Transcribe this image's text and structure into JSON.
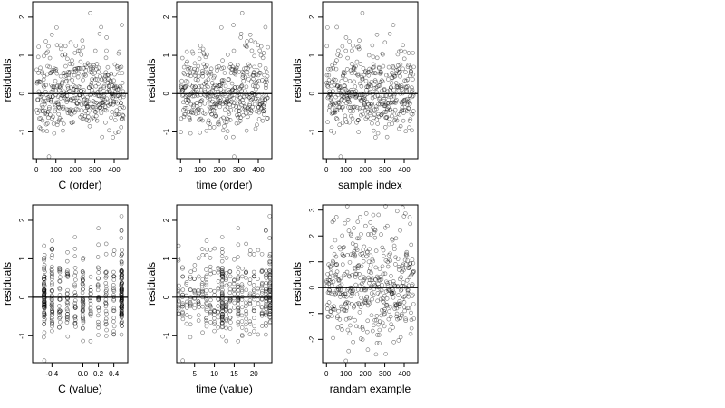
{
  "chart_data": [
    {
      "type": "scatter",
      "xlabel": "C (order)",
      "ylabel": "residuals",
      "xlim": [
        -20,
        470
      ],
      "ylim": [
        -1.7,
        2.4
      ],
      "xticks": [
        0,
        100,
        200,
        300,
        400
      ],
      "yticks": [
        -1,
        0,
        1,
        2
      ],
      "refline_y": 0,
      "x_kind": "index",
      "n": 450,
      "seed": 11,
      "ref_seed": 1,
      "y_sd": 0.5,
      "pattern": "order_C"
    },
    {
      "type": "scatter",
      "xlabel": "time (order)",
      "ylabel": "residuals",
      "xlim": [
        -20,
        470
      ],
      "ylim": [
        -1.7,
        2.4
      ],
      "xticks": [
        0,
        100,
        200,
        300,
        400
      ],
      "yticks": [
        -1,
        0,
        1,
        2
      ],
      "refline_y": 0,
      "x_kind": "index",
      "n": 450,
      "seed": 22,
      "ref_seed": 1,
      "y_sd": 0.5,
      "pattern": "order_time"
    },
    {
      "type": "scatter",
      "xlabel": "sample index",
      "ylabel": "residuals",
      "xlim": [
        -20,
        470
      ],
      "ylim": [
        -1.7,
        2.4
      ],
      "xticks": [
        0,
        100,
        200,
        300,
        400
      ],
      "yticks": [
        -1,
        0,
        1,
        2
      ],
      "refline_y": 0,
      "x_kind": "index",
      "n": 450,
      "seed": 33,
      "ref_seed": 1,
      "y_sd": 0.5,
      "pattern": "index"
    },
    {
      "type": "scatter",
      "xlabel": "C (value)",
      "ylabel": "residuals",
      "xlim": [
        -0.65,
        0.58
      ],
      "ylim": [
        -1.7,
        2.4
      ],
      "xticks": [
        -0.4,
        0.0,
        0.2,
        0.4
      ],
      "xtick_labels": [
        "-0.4",
        "0.0",
        "0.2",
        "0.4"
      ],
      "yticks": [
        -1,
        0,
        1,
        2
      ],
      "refline_y": 0,
      "x_kind": "levels",
      "x_levels": [
        -0.5,
        -0.4,
        -0.3,
        -0.2,
        -0.1,
        0.0,
        0.1,
        0.2,
        0.3,
        0.4,
        0.5
      ],
      "level_weights": [
        5,
        2,
        1.5,
        1,
        1.5,
        2,
        1,
        1,
        1.5,
        1.5,
        4
      ],
      "x_jitter": 0.006,
      "n": 450,
      "seed": 1,
      "ref_seed": 1,
      "y_sd": 0.5
    },
    {
      "type": "scatter",
      "xlabel": "time (value)",
      "ylabel": "residuals",
      "xlim": [
        0.5,
        24.5
      ],
      "ylim": [
        -1.7,
        2.4
      ],
      "xticks": [
        5,
        10,
        15,
        20
      ],
      "yticks": [
        -1,
        0,
        1,
        2
      ],
      "refline_y": 0,
      "x_kind": "levels",
      "x_levels": [
        1,
        2,
        3,
        4,
        5,
        6,
        7,
        8,
        9,
        10,
        11,
        12,
        13,
        14,
        15,
        16,
        17,
        18,
        19,
        20,
        21,
        22,
        23,
        24
      ],
      "level_weights": [
        1,
        1,
        1,
        1,
        1,
        1,
        1,
        1,
        1,
        1,
        1,
        4,
        1,
        1,
        1,
        2,
        1,
        1,
        1,
        1,
        1,
        1,
        1,
        3
      ],
      "x_jitter": 0.08,
      "n": 450,
      "seed": 1,
      "ref_seed": 1,
      "y_sd": 0.5
    },
    {
      "type": "scatter",
      "xlabel": "randam example",
      "ylabel": "residuals",
      "xlim": [
        -20,
        470
      ],
      "ylim": [
        -2.9,
        3.2
      ],
      "xticks": [
        0,
        100,
        200,
        300,
        400
      ],
      "yticks": [
        -2,
        -1,
        0,
        1,
        2,
        3
      ],
      "refline_y": 0,
      "x_kind": "index",
      "n": 450,
      "seed": 66,
      "y_sd": 1.0,
      "pattern": "random"
    }
  ]
}
